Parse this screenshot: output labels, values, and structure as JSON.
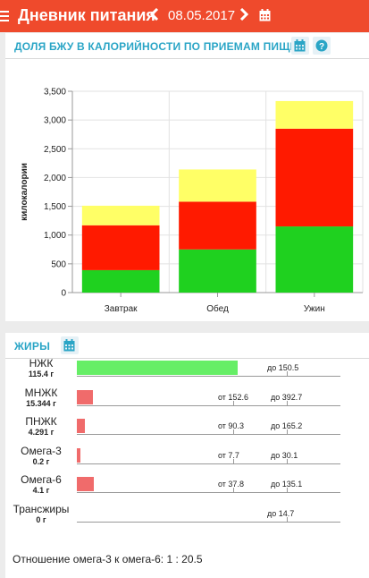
{
  "header": {
    "title": "Дневник питания",
    "date": "08.05.2017",
    "prev_icon": "chevron-left-icon",
    "next_icon": "chevron-right-icon",
    "calendar_icon": "calendar-icon",
    "background": "#ef4a2c"
  },
  "bju_card": {
    "title": "ДОЛЯ БЖУ В КАЛОРИЙНОСТИ ПО ПРИЕМАМ ПИЩИ",
    "icons": [
      "calendar-icon",
      "help-icon"
    ]
  },
  "chart_data": {
    "type": "bar",
    "stacked": true,
    "categories": [
      "Завтрак",
      "Обед",
      "Ужин"
    ],
    "series": [
      {
        "color": "#1fd11f",
        "values": [
          390,
          750,
          1150
        ]
      },
      {
        "color": "#ff1a00",
        "values": [
          780,
          830,
          1700
        ]
      },
      {
        "color": "#ffff66",
        "values": [
          340,
          560,
          480
        ]
      }
    ],
    "ylabel": "килокалории",
    "ylim": [
      0,
      3500
    ],
    "yticks": [
      "0",
      "500",
      "1,000",
      "1,500",
      "2,000",
      "2,500",
      "3,000",
      "3,500"
    ],
    "grid": true
  },
  "fats_card": {
    "title": "ЖИРЫ",
    "icon": "calendar-icon",
    "items": [
      {
        "name": "НЖК",
        "amount": "115.4 г",
        "fraction": 0.61,
        "color": "#66ee66",
        "from": "",
        "to": "до 150.5"
      },
      {
        "name": "МНЖК",
        "amount": "15.344 г",
        "fraction": 0.06,
        "color": "#f06b6b",
        "from": "от 152.6",
        "to": "до 392.7"
      },
      {
        "name": "ПНЖК",
        "amount": "4.291 г",
        "fraction": 0.03,
        "color": "#f06b6b",
        "from": "от 90.3",
        "to": "до 165.2"
      },
      {
        "name": "Омега-3",
        "amount": "0.2 г",
        "fraction": 0.015,
        "color": "#f06b6b",
        "from": "от 7.7",
        "to": "до 30.1"
      },
      {
        "name": "Омега-6",
        "amount": "4.1 г",
        "fraction": 0.065,
        "color": "#f06b6b",
        "from": "от 37.8",
        "to": "до 135.1"
      },
      {
        "name": "Трансжиры",
        "amount": "0 г",
        "fraction": 0,
        "color": "#f06b6b",
        "from": "",
        "to": "до 14.7"
      }
    ],
    "ratio_text": "Отношение омега-3 к омега-6: 1 : 20.5"
  }
}
